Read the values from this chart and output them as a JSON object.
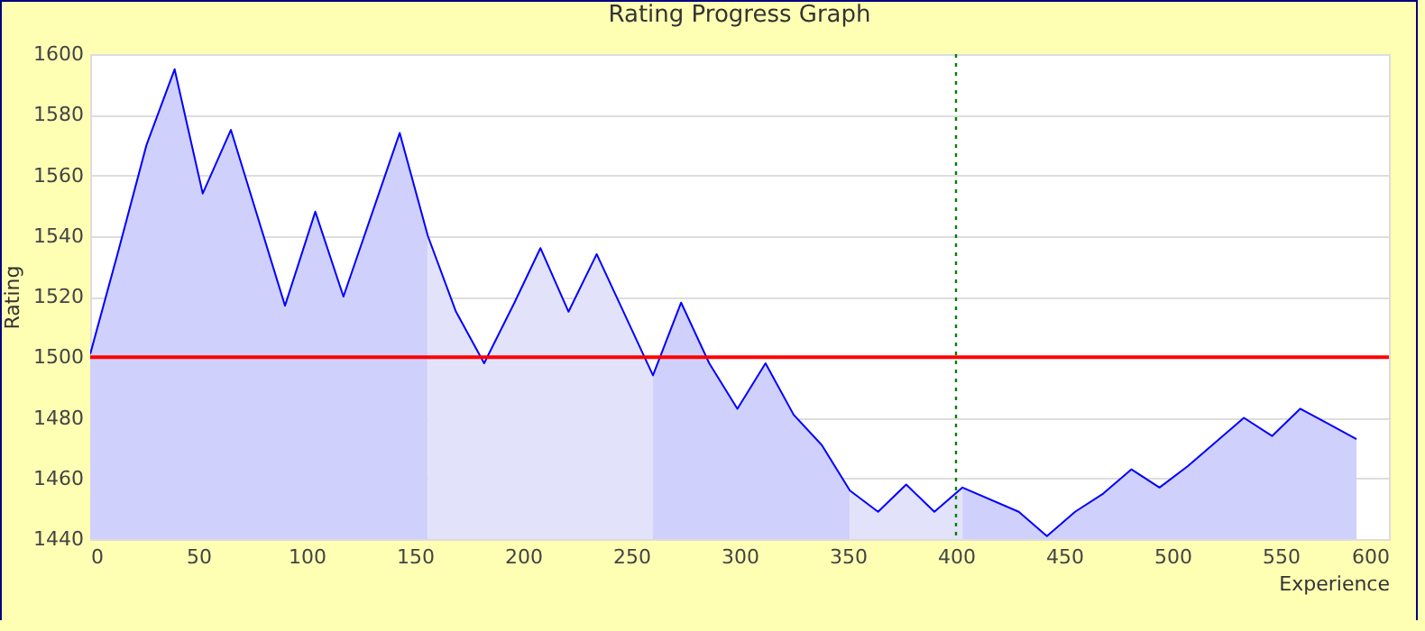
{
  "chart_data": {
    "type": "line",
    "title": "Rating Progress Graph",
    "xlabel": "Experience",
    "ylabel": "Rating",
    "xlim": [
      0,
      600
    ],
    "xticks": [
      0,
      50,
      100,
      150,
      200,
      250,
      300,
      350,
      400,
      450,
      500,
      550,
      600
    ],
    "ylim": [
      1440,
      1600
    ],
    "yticks": [
      1440,
      1460,
      1480,
      1500,
      1520,
      1540,
      1560,
      1580,
      1600
    ],
    "grid": "y",
    "series": [
      {
        "type": "area",
        "color": "#d0d0fc",
        "x": [
          0,
          13,
          26,
          39,
          52,
          65,
          90,
          104,
          117,
          143,
          156
        ],
        "values": [
          1501,
          1535,
          1570,
          1595,
          1554,
          1575,
          1517,
          1548,
          1520,
          1574,
          1540
        ]
      },
      {
        "type": "area",
        "color": "#e2e2fa",
        "x": [
          156,
          169,
          182,
          196,
          208,
          221,
          234,
          260
        ],
        "values": [
          1540,
          1515,
          1498,
          1518,
          1536,
          1515,
          1534,
          1494
        ]
      },
      {
        "type": "area",
        "color": "#d0d0fc",
        "x": [
          260,
          273,
          286,
          299,
          312,
          325,
          338,
          351
        ],
        "values": [
          1494,
          1518,
          1498,
          1483,
          1498,
          1481,
          1471,
          1456
        ]
      },
      {
        "type": "area",
        "color": "#e2e2fa",
        "x": [
          351,
          364,
          377,
          390,
          403
        ],
        "values": [
          1456,
          1449,
          1458,
          1449,
          1457
        ]
      },
      {
        "type": "area",
        "color": "#d0d0fc",
        "x": [
          403,
          429,
          442,
          455,
          468,
          481,
          494,
          507,
          533,
          546,
          559,
          572,
          585
        ],
        "values": [
          1457,
          1449,
          1441,
          1449,
          1455,
          1463,
          1457,
          1464,
          1480,
          1474,
          1483,
          1478,
          1473
        ]
      },
      {
        "color": "#0000ff",
        "x": [
          0,
          13,
          26,
          39,
          52,
          65,
          90,
          104,
          117,
          143,
          156,
          169,
          182,
          196,
          208,
          221,
          234,
          260,
          273,
          286,
          299,
          312,
          325,
          338,
          351,
          364,
          377,
          390,
          403,
          429,
          442,
          455,
          468,
          481,
          494,
          507,
          533,
          546,
          559,
          572,
          585
        ],
        "values": [
          1501,
          1535,
          1570,
          1595,
          1554,
          1575,
          1517,
          1548,
          1520,
          1574,
          1540,
          1515,
          1498,
          1518,
          1536,
          1515,
          1534,
          1494,
          1518,
          1498,
          1483,
          1498,
          1481,
          1471,
          1456,
          1449,
          1458,
          1449,
          1457,
          1449,
          1441,
          1449,
          1455,
          1463,
          1457,
          1464,
          1480,
          1474,
          1483,
          1478,
          1473
        ]
      }
    ],
    "ref_lines": [
      {
        "axis": "y",
        "value": 1500,
        "color": "#ff0000",
        "line_style": "solid"
      },
      {
        "axis": "x",
        "value": 400,
        "color": "#008000",
        "line_style": "dotted"
      }
    ]
  }
}
